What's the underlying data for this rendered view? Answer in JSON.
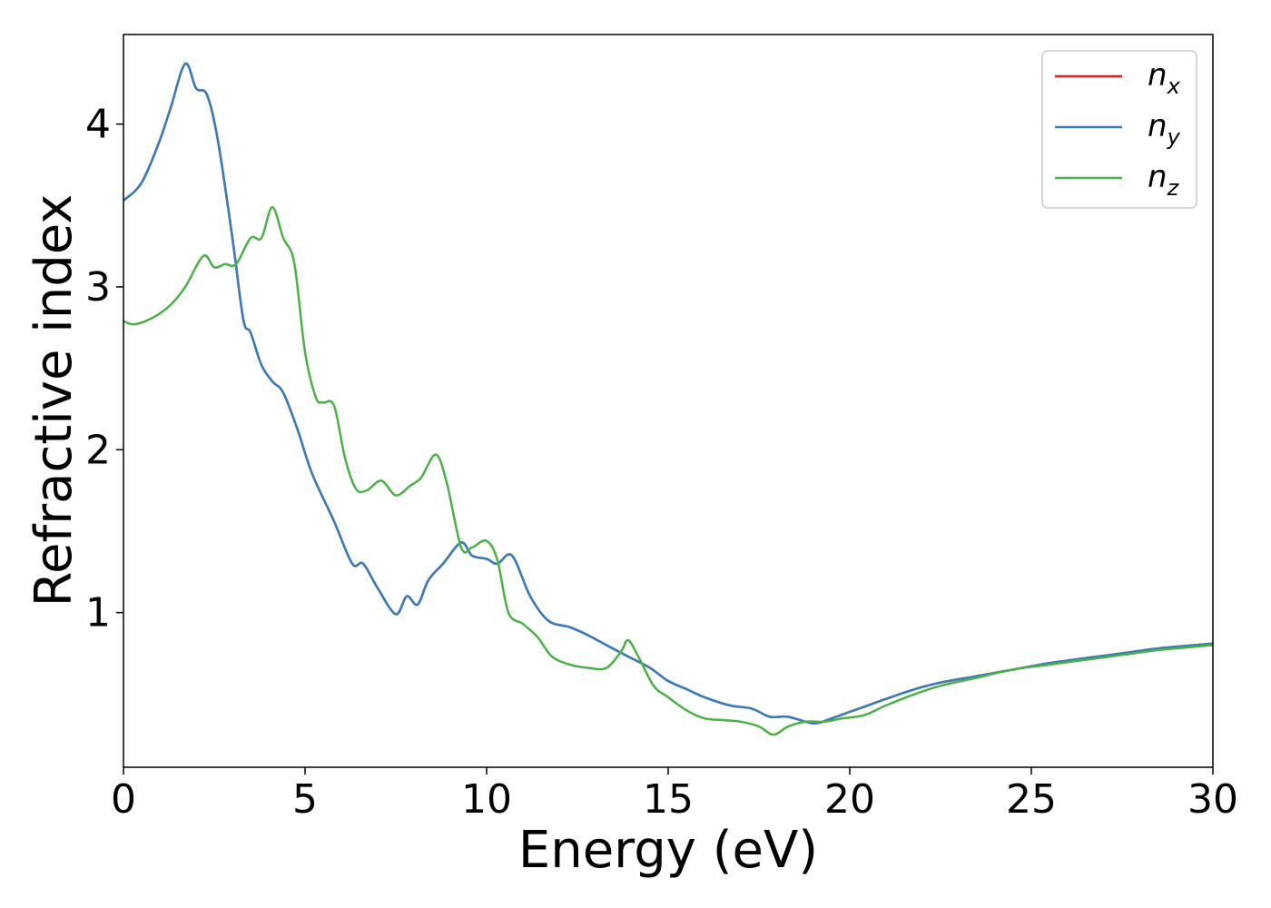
{
  "chart_data": {
    "type": "line",
    "title": "",
    "xlabel": "Energy (eV)",
    "ylabel": "Refractive index",
    "xlim": [
      0,
      30
    ],
    "ylim": [
      0.05,
      4.55
    ],
    "xticks": [
      0,
      5,
      10,
      15,
      20,
      25,
      30
    ],
    "yticks": [
      1,
      2,
      3,
      4
    ],
    "grid": false,
    "legend_position": "top-right",
    "series": [
      {
        "name": "n_x",
        "label_main": "n",
        "label_sub": "x",
        "color": "#e41a1c",
        "x": [
          0,
          0.5,
          1,
          1.3,
          1.7,
          2.0,
          2.3,
          2.6,
          3.0,
          3.3,
          3.5,
          3.8,
          4.1,
          4.4,
          4.8,
          5.2,
          5.8,
          6.3,
          6.6,
          7.0,
          7.5,
          7.8,
          8.1,
          8.4,
          8.8,
          9.3,
          9.6,
          10.0,
          10.3,
          10.7,
          11.2,
          11.7,
          12.3,
          12.8,
          13.3,
          13.9,
          14.5,
          15.0,
          15.5,
          16.0,
          16.7,
          17.3,
          17.8,
          18.3,
          19.0,
          19.5,
          20.0,
          20.5,
          21.0,
          21.8,
          22.5,
          23.5,
          24.5,
          25.5,
          26.5,
          27.5,
          28.5,
          29.5,
          30
        ],
        "y": [
          3.53,
          3.64,
          3.9,
          4.1,
          4.37,
          4.22,
          4.18,
          3.9,
          3.3,
          2.8,
          2.72,
          2.52,
          2.42,
          2.35,
          2.12,
          1.85,
          1.56,
          1.3,
          1.3,
          1.15,
          0.99,
          1.1,
          1.05,
          1.2,
          1.3,
          1.43,
          1.35,
          1.33,
          1.3,
          1.35,
          1.1,
          0.95,
          0.91,
          0.86,
          0.8,
          0.73,
          0.66,
          0.58,
          0.53,
          0.48,
          0.43,
          0.41,
          0.36,
          0.36,
          0.32,
          0.35,
          0.39,
          0.43,
          0.47,
          0.53,
          0.57,
          0.61,
          0.65,
          0.69,
          0.72,
          0.75,
          0.78,
          0.8,
          0.81
        ]
      },
      {
        "name": "n_y",
        "label_main": "n",
        "label_sub": "y",
        "color": "#377eb8",
        "x": [
          0,
          0.5,
          1,
          1.3,
          1.7,
          2.0,
          2.3,
          2.6,
          3.0,
          3.3,
          3.5,
          3.8,
          4.1,
          4.4,
          4.8,
          5.2,
          5.8,
          6.3,
          6.6,
          7.0,
          7.5,
          7.8,
          8.1,
          8.4,
          8.8,
          9.3,
          9.6,
          10.0,
          10.3,
          10.7,
          11.2,
          11.7,
          12.3,
          12.8,
          13.3,
          13.9,
          14.5,
          15.0,
          15.5,
          16.0,
          16.7,
          17.3,
          17.8,
          18.3,
          19.0,
          19.5,
          20.0,
          20.5,
          21.0,
          21.8,
          22.5,
          23.5,
          24.5,
          25.5,
          26.5,
          27.5,
          28.5,
          29.5,
          30
        ],
        "y": [
          3.53,
          3.64,
          3.9,
          4.1,
          4.37,
          4.22,
          4.18,
          3.9,
          3.3,
          2.8,
          2.72,
          2.52,
          2.42,
          2.35,
          2.12,
          1.85,
          1.56,
          1.3,
          1.3,
          1.15,
          0.99,
          1.1,
          1.05,
          1.2,
          1.3,
          1.43,
          1.35,
          1.33,
          1.3,
          1.35,
          1.1,
          0.95,
          0.91,
          0.86,
          0.8,
          0.73,
          0.66,
          0.58,
          0.53,
          0.48,
          0.43,
          0.41,
          0.36,
          0.36,
          0.32,
          0.35,
          0.39,
          0.43,
          0.47,
          0.53,
          0.57,
          0.61,
          0.65,
          0.69,
          0.72,
          0.75,
          0.78,
          0.8,
          0.81
        ]
      },
      {
        "name": "n_z",
        "label_main": "n",
        "label_sub": "z",
        "color": "#4daf4a",
        "x": [
          0,
          0.3,
          0.8,
          1.3,
          1.7,
          2.2,
          2.5,
          2.8,
          3.1,
          3.5,
          3.8,
          4.1,
          4.4,
          4.7,
          5.0,
          5.3,
          5.5,
          5.8,
          6.1,
          6.4,
          6.7,
          7.1,
          7.5,
          7.9,
          8.2,
          8.6,
          8.9,
          9.3,
          9.6,
          10.0,
          10.3,
          10.6,
          11.0,
          11.4,
          11.8,
          12.3,
          12.8,
          13.3,
          13.7,
          13.9,
          14.2,
          14.6,
          15.0,
          15.5,
          16.0,
          16.5,
          17.0,
          17.5,
          17.9,
          18.3,
          18.8,
          19.3,
          19.8,
          20.4,
          21.0,
          21.8,
          22.5,
          23.5,
          24.5,
          25.5,
          26.5,
          27.5,
          28.5,
          29.5,
          30
        ],
        "y": [
          2.79,
          2.77,
          2.81,
          2.89,
          3.0,
          3.19,
          3.12,
          3.14,
          3.14,
          3.3,
          3.3,
          3.49,
          3.3,
          3.15,
          2.6,
          2.32,
          2.29,
          2.27,
          1.95,
          1.76,
          1.75,
          1.81,
          1.72,
          1.78,
          1.83,
          1.97,
          1.8,
          1.4,
          1.4,
          1.44,
          1.32,
          1.0,
          0.93,
          0.85,
          0.73,
          0.68,
          0.66,
          0.66,
          0.76,
          0.83,
          0.72,
          0.55,
          0.48,
          0.4,
          0.35,
          0.34,
          0.33,
          0.3,
          0.25,
          0.3,
          0.33,
          0.33,
          0.35,
          0.37,
          0.43,
          0.5,
          0.55,
          0.6,
          0.65,
          0.68,
          0.71,
          0.74,
          0.77,
          0.79,
          0.8
        ]
      }
    ]
  }
}
